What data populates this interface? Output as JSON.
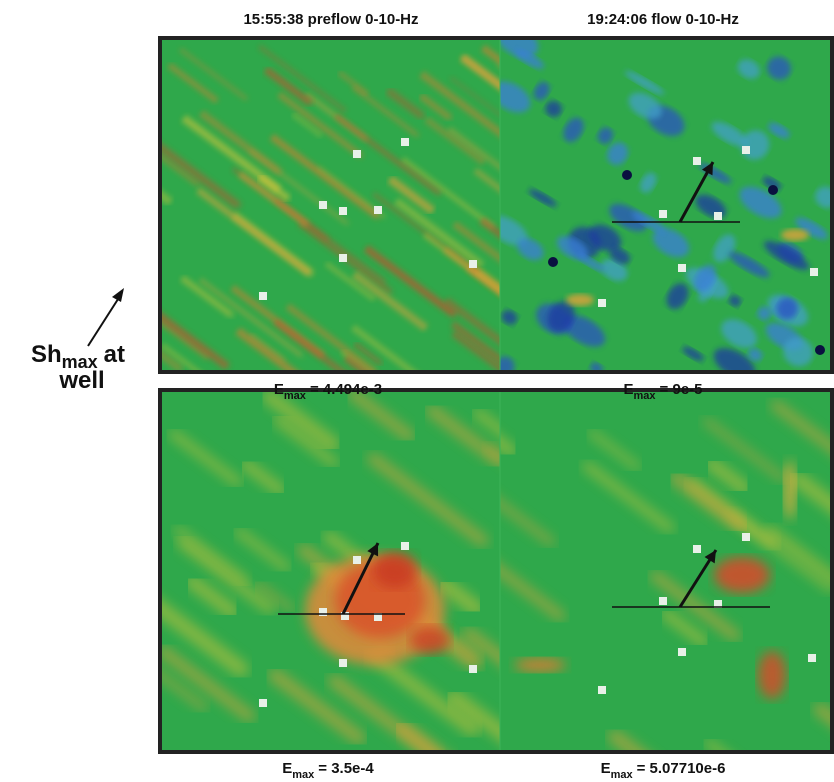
{
  "header": {
    "left_title": "15:55:38 preflow 0-10-Hz",
    "right_title": "19:24:06 flow 0-10-Hz"
  },
  "side_label": {
    "main": "Sh",
    "subscript": "max",
    "rest": "at",
    "line2": "well"
  },
  "captions": [
    {
      "symbol": "E",
      "subscript": "max",
      "value": "= 4.494e-3"
    },
    {
      "symbol": "E",
      "subscript": "max",
      "value": "= 9e-5"
    },
    {
      "symbol": "E",
      "subscript": "max",
      "value": "= 3.5e-4"
    },
    {
      "symbol": "E",
      "subscript": "max",
      "value": "= 5.07710e-6"
    }
  ]
}
